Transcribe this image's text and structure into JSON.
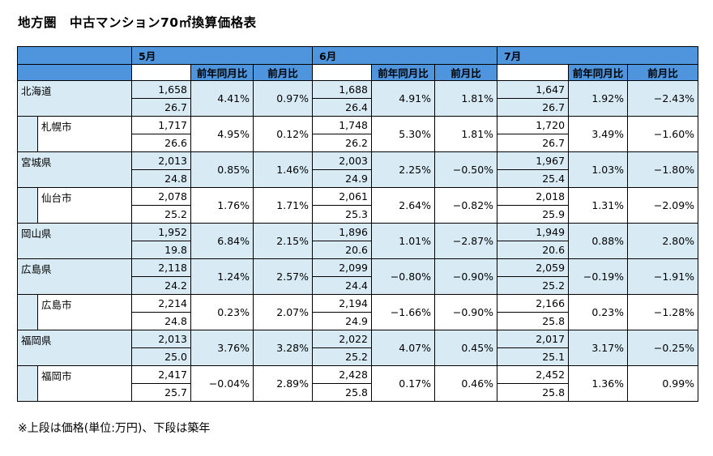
{
  "title": "地方圏　中古マンション70㎡換算価格表",
  "note": "※上段は価格(単位:万円)、下段は築年",
  "columns": {
    "months": [
      "5月",
      "6月",
      "7月"
    ],
    "yoy_label": "前年同月比",
    "mom_label": "前月比"
  },
  "rows": [
    {
      "name": "北海道",
      "level": "pref",
      "data": [
        {
          "price": "1,658",
          "age": "26.7",
          "yoy": "4.41%",
          "mom": "0.97%"
        },
        {
          "price": "1,688",
          "age": "26.4",
          "yoy": "4.91%",
          "mom": "1.81%"
        },
        {
          "price": "1,647",
          "age": "26.7",
          "yoy": "1.92%",
          "mom": "−2.43%"
        }
      ]
    },
    {
      "name": "札幌市",
      "level": "city",
      "data": [
        {
          "price": "1,717",
          "age": "26.6",
          "yoy": "4.95%",
          "mom": "0.12%"
        },
        {
          "price": "1,748",
          "age": "26.2",
          "yoy": "5.30%",
          "mom": "1.81%"
        },
        {
          "price": "1,720",
          "age": "26.7",
          "yoy": "3.49%",
          "mom": "−1.60%"
        }
      ]
    },
    {
      "name": "宮城県",
      "level": "pref",
      "data": [
        {
          "price": "2,013",
          "age": "24.8",
          "yoy": "0.85%",
          "mom": "1.46%"
        },
        {
          "price": "2,003",
          "age": "24.9",
          "yoy": "2.25%",
          "mom": "−0.50%"
        },
        {
          "price": "1,967",
          "age": "25.4",
          "yoy": "1.03%",
          "mom": "−1.80%"
        }
      ]
    },
    {
      "name": "仙台市",
      "level": "city",
      "data": [
        {
          "price": "2,078",
          "age": "25.2",
          "yoy": "1.76%",
          "mom": "1.71%"
        },
        {
          "price": "2,061",
          "age": "25.3",
          "yoy": "2.64%",
          "mom": "−0.82%"
        },
        {
          "price": "2,018",
          "age": "25.9",
          "yoy": "1.31%",
          "mom": "−2.09%"
        }
      ]
    },
    {
      "name": "岡山県",
      "level": "pref",
      "data": [
        {
          "price": "1,952",
          "age": "19.8",
          "yoy": "6.84%",
          "mom": "2.15%"
        },
        {
          "price": "1,896",
          "age": "20.6",
          "yoy": "1.01%",
          "mom": "−2.87%"
        },
        {
          "price": "1,949",
          "age": "20.6",
          "yoy": "0.88%",
          "mom": "2.80%"
        }
      ]
    },
    {
      "name": "広島県",
      "level": "pref",
      "data": [
        {
          "price": "2,118",
          "age": "24.2",
          "yoy": "1.24%",
          "mom": "2.57%"
        },
        {
          "price": "2,099",
          "age": "24.4",
          "yoy": "−0.80%",
          "mom": "−0.90%"
        },
        {
          "price": "2,059",
          "age": "25.2",
          "yoy": "−0.19%",
          "mom": "−1.91%"
        }
      ]
    },
    {
      "name": "広島市",
      "level": "city",
      "data": [
        {
          "price": "2,214",
          "age": "24.8",
          "yoy": "0.23%",
          "mom": "2.07%"
        },
        {
          "price": "2,194",
          "age": "24.9",
          "yoy": "−1.66%",
          "mom": "−0.90%"
        },
        {
          "price": "2,166",
          "age": "25.8",
          "yoy": "0.23%",
          "mom": "−1.28%"
        }
      ]
    },
    {
      "name": "福岡県",
      "level": "pref",
      "data": [
        {
          "price": "2,013",
          "age": "25.0",
          "yoy": "3.76%",
          "mom": "3.28%"
        },
        {
          "price": "2,022",
          "age": "25.2",
          "yoy": "4.07%",
          "mom": "0.45%"
        },
        {
          "price": "2,017",
          "age": "25.1",
          "yoy": "3.17%",
          "mom": "−0.25%"
        }
      ]
    },
    {
      "name": "福岡市",
      "level": "city",
      "data": [
        {
          "price": "2,417",
          "age": "25.7",
          "yoy": "−0.04%",
          "mom": "2.89%"
        },
        {
          "price": "2,428",
          "age": "25.8",
          "yoy": "0.17%",
          "mom": "0.46%"
        },
        {
          "price": "2,452",
          "age": "25.8",
          "yoy": "1.36%",
          "mom": "0.99%"
        }
      ]
    }
  ]
}
